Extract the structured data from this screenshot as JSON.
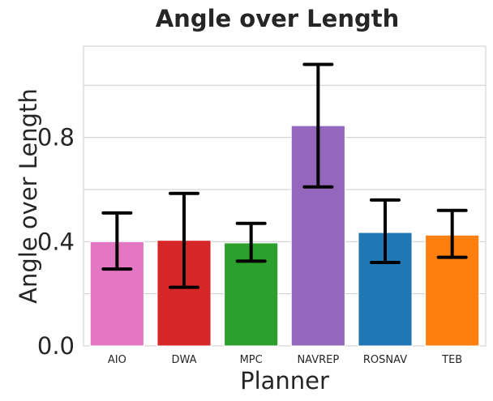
{
  "chart_data": {
    "type": "bar",
    "title": "Angle over Length",
    "xlabel": "Planner",
    "ylabel": "Angle over Length",
    "categories": [
      "AIO",
      "DWA",
      "MPC",
      "NAVREP",
      "ROSNAV",
      "TEB"
    ],
    "values": [
      0.4,
      0.405,
      0.395,
      0.845,
      0.435,
      0.425
    ],
    "error_low": [
      0.295,
      0.225,
      0.325,
      0.61,
      0.32,
      0.34
    ],
    "error_high": [
      0.51,
      0.585,
      0.47,
      1.08,
      0.56,
      0.52
    ],
    "colors": [
      "#e377c2",
      "#d62728",
      "#2ca02c",
      "#9467bd",
      "#1f77b4",
      "#ff7f0e"
    ],
    "yticks": [
      "0.0",
      "0.4",
      "0.8"
    ],
    "ytick_values": [
      0.0,
      0.4,
      0.8
    ],
    "ylim": [
      0,
      1.15
    ],
    "grid_values": [
      0,
      0.2,
      0.4,
      0.6,
      0.8,
      1.0
    ],
    "grid": true,
    "legend": "none"
  }
}
